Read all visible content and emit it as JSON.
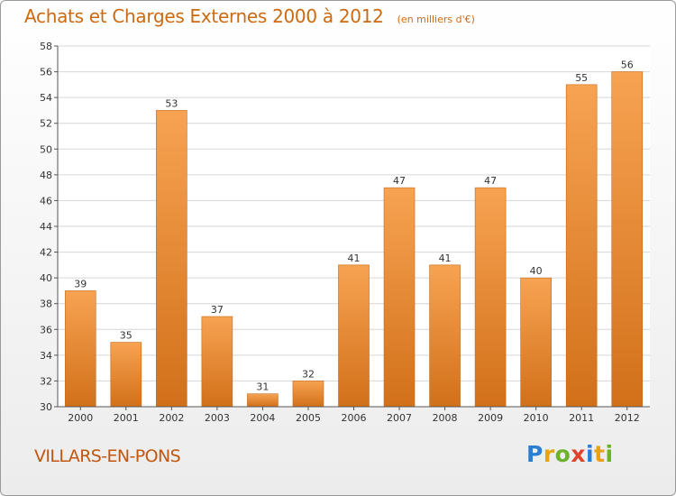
{
  "header": {
    "title": "Achats et Charges Externes 2000 à 2012",
    "unit_note": "(en milliers d'€)"
  },
  "footer": {
    "location": "VILLARS-EN-PONS",
    "logo_text": "Proxiti"
  },
  "colors": {
    "bar_top": "#f7a352",
    "bar_bottom": "#d2701a",
    "title": "#cc6a12",
    "grid": "#d6d6d6"
  },
  "chart_data": {
    "type": "bar",
    "title": "Achats et Charges Externes 2000 à 2012",
    "xlabel": "",
    "ylabel": "",
    "categories": [
      "2000",
      "2001",
      "2002",
      "2003",
      "2004",
      "2005",
      "2006",
      "2007",
      "2008",
      "2009",
      "2010",
      "2011",
      "2012"
    ],
    "values": [
      39,
      35,
      53,
      37,
      31,
      32,
      41,
      47,
      41,
      47,
      40,
      55,
      56
    ],
    "ylim": [
      30,
      58
    ],
    "yticks": [
      30,
      32,
      34,
      36,
      38,
      40,
      42,
      44,
      46,
      48,
      50,
      52,
      54,
      56,
      58
    ],
    "grid": true,
    "data_labels": true
  }
}
